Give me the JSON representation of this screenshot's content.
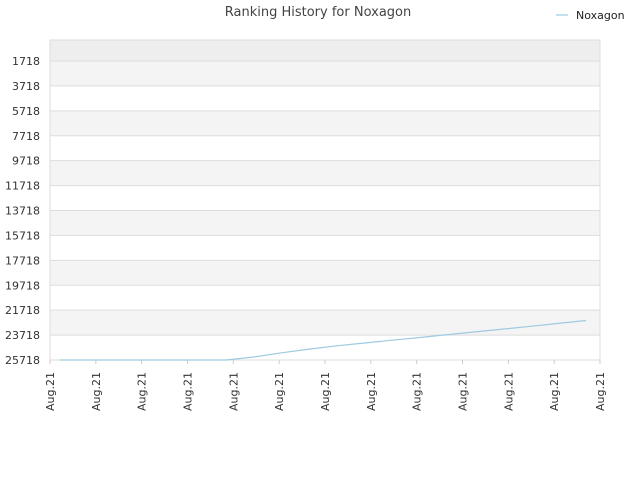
{
  "chart_data": {
    "type": "line",
    "title": "Ranking History for Noxagon",
    "xlabel": "",
    "ylabel": "",
    "y_inverted": true,
    "ylim": [
      25718,
      1718
    ],
    "y_ticks": [
      "1718",
      "3718",
      "5718",
      "7718",
      "9718",
      "11718",
      "13718",
      "15718",
      "17718",
      "19718",
      "21718",
      "23718",
      "25718"
    ],
    "y_tick_values": [
      1718,
      3718,
      5718,
      7718,
      9718,
      11718,
      13718,
      15718,
      17718,
      19718,
      21718,
      23718,
      25718
    ],
    "x_tick_labels": [
      "Aug.21",
      "Aug.21",
      "Aug.21",
      "Aug.21",
      "Aug.21",
      "Aug.21",
      "Aug.21",
      "Aug.21",
      "Aug.21",
      "Aug.21",
      "Aug.21",
      "Aug.21",
      "Aug.21"
    ],
    "grid": true,
    "legend_position": "top-right",
    "series": [
      {
        "name": "Noxagon",
        "color": "#9ecae1",
        "values": [
          25718,
          25718,
          25718,
          25718,
          25718,
          25718,
          25718,
          25480,
          25140,
          24840,
          24580,
          24350,
          24130,
          23910,
          23680,
          23460,
          23240,
          23010,
          22780,
          22550
        ]
      }
    ]
  }
}
